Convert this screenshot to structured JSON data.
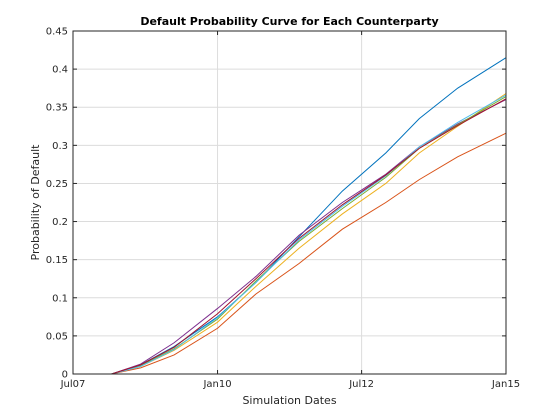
{
  "chart_data": {
    "type": "line",
    "title": "Default Probability Curve for Each Counterparty",
    "xlabel": "Simulation Dates",
    "ylabel": "Probability of Default",
    "x_ticks": [
      {
        "date": "2007-07-01",
        "label": "Jul07"
      },
      {
        "date": "2010-01-01",
        "label": "Jan10"
      },
      {
        "date": "2012-07-01",
        "label": "Jul12"
      },
      {
        "date": "2015-01-01",
        "label": "Jan15"
      }
    ],
    "y_ticks": [
      0,
      0.05,
      0.1,
      0.15,
      0.2,
      0.25,
      0.3,
      0.35,
      0.4,
      0.45
    ],
    "y_tick_labels": [
      "0",
      "0.05",
      "0.1",
      "0.15",
      "0.2",
      "0.25",
      "0.3",
      "0.35",
      "0.4",
      "0.45"
    ],
    "xlim": [
      "2007-07-01",
      "2015-01-01"
    ],
    "ylim": [
      0,
      0.45
    ],
    "grid": true,
    "x": [
      "2008-03-01",
      "2008-09-01",
      "2009-04-01",
      "2010-01-01",
      "2010-09-01",
      "2011-06-01",
      "2012-03-01",
      "2012-12-01",
      "2013-07-01",
      "2014-03-01",
      "2015-01-01"
    ],
    "series": [
      {
        "color": "#0072bd",
        "values": [
          0,
          0.012,
          0.036,
          0.075,
          0.12,
          0.18,
          0.24,
          0.29,
          0.335,
          0.375,
          0.415
        ]
      },
      {
        "color": "#d95319",
        "values": [
          0,
          0.008,
          0.025,
          0.06,
          0.105,
          0.145,
          0.19,
          0.225,
          0.255,
          0.285,
          0.316
        ]
      },
      {
        "color": "#edb120",
        "values": [
          0,
          0.01,
          0.031,
          0.068,
          0.115,
          0.165,
          0.21,
          0.25,
          0.29,
          0.325,
          0.368
        ]
      },
      {
        "color": "#7e2f8e",
        "values": [
          0,
          0.013,
          0.041,
          0.086,
          0.128,
          0.182,
          0.225,
          0.262,
          0.298,
          0.328,
          0.36
        ]
      },
      {
        "color": "#77ac30",
        "values": [
          0,
          0.011,
          0.033,
          0.072,
          0.122,
          0.174,
          0.217,
          0.258,
          0.296,
          0.327,
          0.364
        ]
      },
      {
        "color": "#4dbeee",
        "values": [
          0,
          0.01,
          0.032,
          0.074,
          0.12,
          0.176,
          0.22,
          0.26,
          0.298,
          0.33,
          0.366
        ]
      },
      {
        "color": "#a2142f",
        "values": [
          0,
          0.012,
          0.035,
          0.079,
          0.125,
          0.178,
          0.222,
          0.261,
          0.296,
          0.326,
          0.361
        ]
      }
    ]
  }
}
